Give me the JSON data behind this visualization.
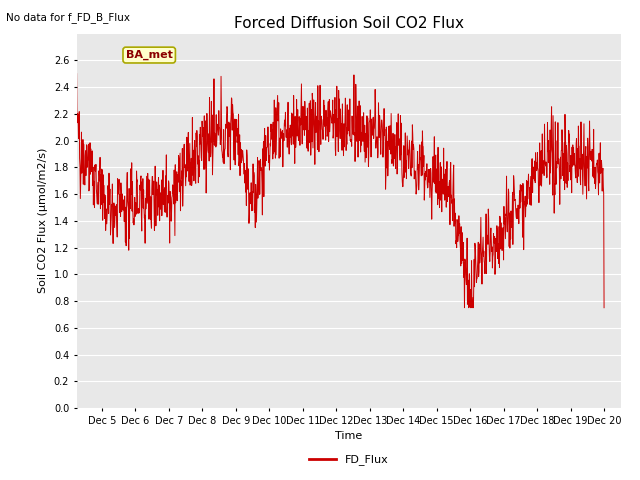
{
  "title": "Forced Diffusion Soil CO2 Flux",
  "top_left_text": "No data for f_FD_B_Flux",
  "ylabel": "Soil CO2 Flux (μmol/m2/s)",
  "xlabel": "Time",
  "legend_label": "FD_Flux",
  "legend_line_color": "#cc0000",
  "line_color": "#cc0000",
  "ylim": [
    0.0,
    2.8
  ],
  "yticks": [
    0.0,
    0.2,
    0.4,
    0.6,
    0.8,
    1.0,
    1.2,
    1.4,
    1.6,
    1.8,
    2.0,
    2.2,
    2.4,
    2.6
  ],
  "bg_color": "#e8e8e8",
  "fig_bg_color": "#ffffff",
  "grid_color": "#ffffff",
  "annotation_text": "BA_met",
  "annotation_box_color": "#ffffcc",
  "annotation_box_edge": "#aaa800",
  "title_fontsize": 11,
  "label_fontsize": 8,
  "tick_fontsize": 7,
  "n_points": 1440
}
